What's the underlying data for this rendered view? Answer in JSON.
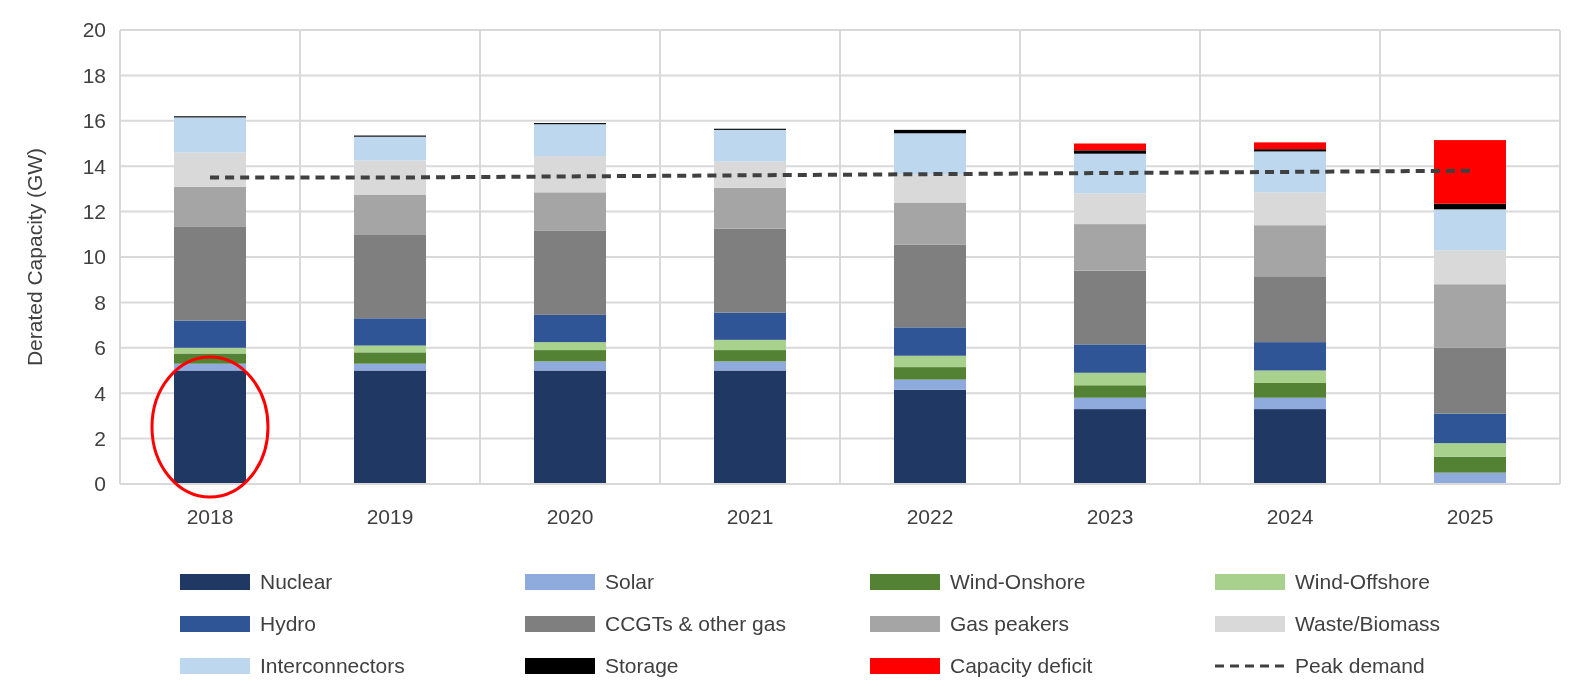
{
  "chart_data": {
    "type": "bar",
    "stacked": true,
    "ylabel": "Derated Capacity (GW)",
    "categories": [
      "2018",
      "2019",
      "2020",
      "2021",
      "2022",
      "2023",
      "2024",
      "2025"
    ],
    "ylim": [
      0,
      20
    ],
    "yticks": [
      0,
      2,
      4,
      6,
      8,
      10,
      12,
      14,
      16,
      18,
      20
    ],
    "grid": true,
    "legend": "bottom",
    "series": [
      {
        "name": "Nuclear",
        "color": "#203864",
        "values": [
          5.0,
          5.0,
          5.0,
          5.0,
          4.15,
          3.3,
          3.3,
          0
        ]
      },
      {
        "name": "Solar",
        "color": "#8faadc",
        "values": [
          0.3,
          0.3,
          0.4,
          0.4,
          0.45,
          0.5,
          0.5,
          0.5
        ]
      },
      {
        "name": "Wind-Onshore",
        "color": "#548235",
        "values": [
          0.45,
          0.5,
          0.5,
          0.5,
          0.55,
          0.55,
          0.65,
          0.7
        ]
      },
      {
        "name": "Wind-Offshore",
        "color": "#a9d18e",
        "values": [
          0.25,
          0.3,
          0.35,
          0.45,
          0.5,
          0.55,
          0.55,
          0.6
        ]
      },
      {
        "name": "Hydro",
        "color": "#2f5597",
        "values": [
          1.2,
          1.2,
          1.2,
          1.2,
          1.25,
          1.25,
          1.25,
          1.3
        ]
      },
      {
        "name": "CCGTs & other gas",
        "color": "#7f7f7f",
        "values": [
          4.15,
          3.7,
          3.7,
          3.7,
          3.65,
          3.25,
          2.9,
          2.9
        ]
      },
      {
        "name": "Gas peakers",
        "color": "#a5a5a5",
        "values": [
          1.75,
          1.75,
          1.7,
          1.8,
          1.85,
          2.05,
          2.25,
          2.8
        ]
      },
      {
        "name": "Waste/Biomass",
        "color": "#d9d9d9",
        "values": [
          1.5,
          1.5,
          1.6,
          1.15,
          1.25,
          1.35,
          1.45,
          1.5
        ]
      },
      {
        "name": "Interconnectors",
        "color": "#bdd7ee",
        "values": [
          1.55,
          1.05,
          1.4,
          1.4,
          1.8,
          1.75,
          1.8,
          1.8
        ]
      },
      {
        "name": "Storage",
        "color": "#000000",
        "values": [
          0.05,
          0.05,
          0.05,
          0.05,
          0.15,
          0.15,
          0.1,
          0.25
        ]
      },
      {
        "name": "Capacity deficit",
        "color": "#ff0000",
        "values": [
          0,
          0,
          0,
          0,
          0,
          0.3,
          0.3,
          2.8
        ]
      },
      {
        "name": "Peak demand",
        "type": "line",
        "line_style": "dashed",
        "color": "#404040",
        "values": [
          13.5,
          13.5,
          13.55,
          13.6,
          13.65,
          13.7,
          13.75,
          13.8
        ]
      }
    ]
  }
}
